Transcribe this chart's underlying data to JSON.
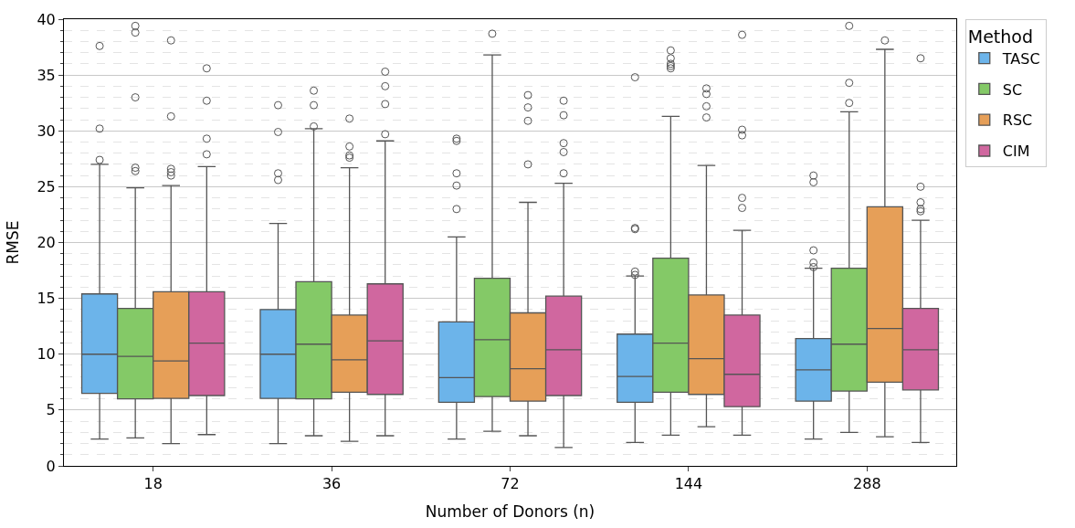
{
  "chart_data": {
    "type": "box",
    "xlabel": "Number of Donors (n)",
    "ylabel": "RMSE",
    "legend_title": "Method",
    "categories": [
      "18",
      "36",
      "72",
      "144",
      "288"
    ],
    "ylim": [
      0,
      40
    ],
    "yticks": [
      0,
      5,
      10,
      15,
      20,
      25,
      30,
      35,
      40
    ],
    "grid": "y",
    "legend": "right",
    "marker": "circle",
    "series": [
      {
        "name": "TASC",
        "color": "#6cb4ea",
        "boxes": [
          {
            "low": 2.4,
            "q1": 6.5,
            "median": 10.0,
            "q3": 15.4,
            "high": 27.0,
            "outliers": [
              27.4,
              30.2,
              37.6
            ]
          },
          {
            "low": 2.0,
            "q1": 6.05,
            "median": 10.0,
            "q3": 14.0,
            "high": 21.7,
            "outliers": [
              25.6,
              26.2,
              29.9,
              32.3
            ]
          },
          {
            "low": 2.4,
            "q1": 5.7,
            "median": 7.9,
            "q3": 12.9,
            "high": 20.5,
            "outliers": [
              23.0,
              25.1,
              26.2,
              29.1,
              29.3
            ]
          },
          {
            "low": 2.1,
            "q1": 5.7,
            "median": 8.0,
            "q3": 11.8,
            "high": 17.0,
            "outliers": [
              17.1,
              17.4,
              21.2,
              21.3,
              34.8
            ]
          },
          {
            "low": 2.4,
            "q1": 5.8,
            "median": 8.6,
            "q3": 11.4,
            "high": 17.7,
            "outliers": [
              17.8,
              18.2,
              19.3,
              25.4,
              26.0
            ]
          }
        ]
      },
      {
        "name": "SC",
        "color": "#84c967",
        "boxes": [
          {
            "low": 2.5,
            "q1": 6.0,
            "median": 9.8,
            "q3": 14.1,
            "high": 24.9,
            "outliers": [
              26.4,
              26.7,
              33.0,
              38.8,
              39.4
            ]
          },
          {
            "low": 2.7,
            "q1": 6.0,
            "median": 10.9,
            "q3": 16.5,
            "high": 30.2,
            "outliers": [
              30.4,
              32.3,
              33.6
            ]
          },
          {
            "low": 3.1,
            "q1": 6.2,
            "median": 11.3,
            "q3": 16.8,
            "high": 36.8,
            "outliers": [
              38.7
            ]
          },
          {
            "low": 2.75,
            "q1": 6.6,
            "median": 11.0,
            "q3": 18.6,
            "high": 31.3,
            "outliers": [
              35.6,
              35.8,
              36.0,
              36.5,
              37.2
            ]
          },
          {
            "low": 3.0,
            "q1": 6.7,
            "median": 10.9,
            "q3": 17.7,
            "high": 31.7,
            "outliers": [
              32.5,
              34.3,
              39.4
            ]
          }
        ]
      },
      {
        "name": "RSC",
        "color": "#e69f58",
        "boxes": [
          {
            "low": 2.0,
            "q1": 6.05,
            "median": 9.4,
            "q3": 15.6,
            "high": 25.1,
            "outliers": [
              26.0,
              26.3,
              26.6,
              31.3,
              38.1
            ]
          },
          {
            "low": 2.2,
            "q1": 6.6,
            "median": 9.5,
            "q3": 13.5,
            "high": 26.7,
            "outliers": [
              27.6,
              27.8,
              28.6,
              31.1
            ]
          },
          {
            "low": 2.7,
            "q1": 5.8,
            "median": 8.7,
            "q3": 13.7,
            "high": 23.6,
            "outliers": [
              27.0,
              30.9,
              32.1,
              33.2
            ]
          },
          {
            "low": 3.5,
            "q1": 6.4,
            "median": 9.6,
            "q3": 15.3,
            "high": 26.9,
            "outliers": [
              31.2,
              32.2,
              33.3,
              33.8
            ]
          },
          {
            "low": 2.6,
            "q1": 7.5,
            "median": 12.3,
            "q3": 23.2,
            "high": 37.3,
            "outliers": [
              38.1
            ]
          }
        ]
      },
      {
        "name": "CIM",
        "color": "#d0679f",
        "boxes": [
          {
            "low": 2.8,
            "q1": 6.3,
            "median": 11.0,
            "q3": 15.6,
            "high": 26.8,
            "outliers": [
              27.9,
              29.3,
              32.7,
              35.6
            ]
          },
          {
            "low": 2.7,
            "q1": 6.4,
            "median": 11.2,
            "q3": 16.3,
            "high": 29.1,
            "outliers": [
              29.7,
              32.4,
              34.0,
              35.3
            ]
          },
          {
            "low": 1.65,
            "q1": 6.3,
            "median": 10.4,
            "q3": 15.2,
            "high": 25.3,
            "outliers": [
              26.2,
              28.1,
              28.9,
              31.4,
              32.7
            ]
          },
          {
            "low": 2.75,
            "q1": 5.3,
            "median": 8.2,
            "q3": 13.5,
            "high": 21.1,
            "outliers": [
              23.1,
              24.0,
              29.6,
              30.1,
              38.6
            ]
          },
          {
            "low": 2.1,
            "q1": 6.8,
            "median": 10.4,
            "q3": 14.1,
            "high": 22.0,
            "outliers": [
              22.8,
              23.0,
              23.6,
              25.0,
              36.5
            ]
          }
        ]
      }
    ]
  }
}
